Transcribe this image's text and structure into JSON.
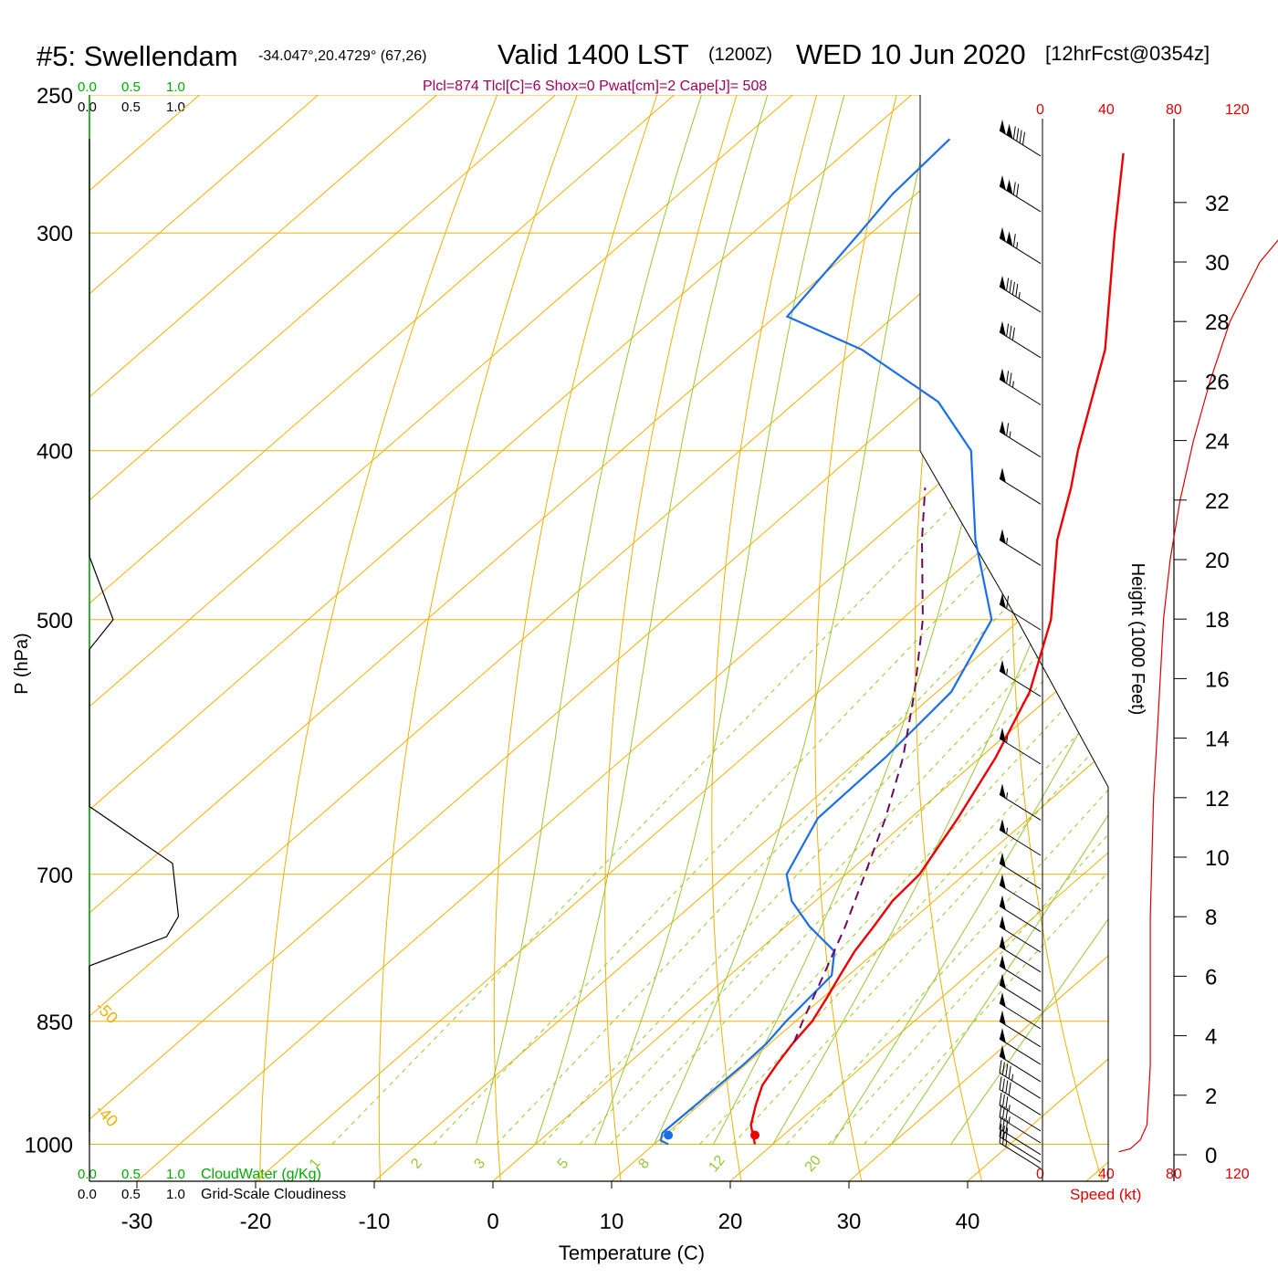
{
  "header": {
    "station": "#5: Swellendam",
    "coords": "-34.047°,20.4729° (67,26)",
    "valid": "Valid 1400 LST",
    "zulu": "(1200Z)",
    "date": "WED 10 Jun 2020",
    "forecast": "[12hrFcst@0354z]",
    "indices": "Plcl=874 Tlcl[C]=6 Shox=0 Pwat[cm]=2 Cape[J]= 508"
  },
  "colors": {
    "temperature": "#ee0000",
    "dewpoint": "#1a6fe8",
    "parcel": "#6a0a5a",
    "isotherm": "#f0b000",
    "mixing_ratio": "#96c832",
    "speed": "#dd0000",
    "cloud": "#00aa00",
    "indices": "#a0005a"
  },
  "cloud_scale": {
    "cloudwater_ticks": [
      "0.0",
      "0.5",
      "1.0"
    ],
    "cloudiness_ticks": [
      "0.0",
      "0.5",
      "1.0"
    ],
    "cloudwater_label": "CloudWater (g/Kg)",
    "cloudiness_label": "Grid-Scale Cloudiness"
  },
  "speed_axis": {
    "ticks": [
      "0",
      "40",
      "80",
      "120"
    ],
    "label": "Speed (kt)"
  },
  "chart_data": {
    "type": "line",
    "subtype": "skew-T log-P sounding",
    "xlabel": "Temperature (C)",
    "ylabel": "P (hPa)",
    "y2label": "Height (1000 Feet)",
    "x_ticks": [
      -30,
      -20,
      -10,
      0,
      10,
      20,
      30,
      40
    ],
    "y_ticks": [
      250,
      300,
      400,
      500,
      700,
      850,
      1000
    ],
    "height_ticks": [
      0,
      2,
      4,
      6,
      8,
      10,
      12,
      14,
      16,
      18,
      20,
      22,
      24,
      26,
      28,
      30,
      32
    ],
    "xlim": [
      -34,
      36
    ],
    "ylim": [
      1050,
      250
    ],
    "y_scale": "log",
    "isotherm_labels": [
      "-50",
      "-40",
      "-30",
      "-20",
      "-10",
      "0",
      "10",
      "20",
      "30"
    ],
    "mixing_ratio_labels": [
      "1",
      "2",
      "3",
      "5",
      "8",
      "12",
      "20"
    ],
    "series": [
      {
        "key": "temperature",
        "points": [
          [
            1000,
            18.5
          ],
          [
            975,
            16.3
          ],
          [
            950,
            14.8
          ],
          [
            925,
            13.4
          ],
          [
            900,
            12.6
          ],
          [
            875,
            11.9
          ],
          [
            850,
            11.4
          ],
          [
            825,
            10.4
          ],
          [
            800,
            9.3
          ],
          [
            775,
            8.2
          ],
          [
            750,
            7.4
          ],
          [
            725,
            6.5
          ],
          [
            700,
            6.2
          ],
          [
            650,
            4.0
          ],
          [
            600,
            1.3
          ],
          [
            550,
            -2.2
          ],
          [
            500,
            -7.4
          ],
          [
            450,
            -14.6
          ],
          [
            420,
            -18.5
          ],
          [
            400,
            -21.5
          ],
          [
            350,
            -29.0
          ],
          [
            300,
            -39.5
          ],
          [
            270,
            -46.5
          ]
        ]
      },
      {
        "key": "dewpoint",
        "points": [
          [
            1000,
            11.2
          ],
          [
            995,
            10.2
          ],
          [
            985,
            9.6
          ],
          [
            950,
            9.7
          ],
          [
            900,
            9.8
          ],
          [
            875,
            9.7
          ],
          [
            850,
            9.2
          ],
          [
            825,
            8.9
          ],
          [
            800,
            8.6
          ],
          [
            775,
            6.5
          ],
          [
            750,
            2.0
          ],
          [
            725,
            -2.0
          ],
          [
            700,
            -5.0
          ],
          [
            650,
            -7.8
          ],
          [
            600,
            -8.0
          ],
          [
            550,
            -8.8
          ],
          [
            500,
            -12.4
          ],
          [
            450,
            -21.5
          ],
          [
            400,
            -30.5
          ],
          [
            375,
            -38.0
          ],
          [
            350,
            -49.5
          ],
          [
            335,
            -59.0
          ],
          [
            300,
            -61.0
          ],
          [
            285,
            -62.0
          ],
          [
            265,
            -62.5
          ]
        ]
      },
      {
        "key": "parcel",
        "points": [
          [
            874,
            11.9
          ],
          [
            850,
            10.6
          ],
          [
            800,
            7.9
          ],
          [
            750,
            5.0
          ],
          [
            700,
            1.6
          ],
          [
            650,
            -2.1
          ],
          [
            600,
            -6.5
          ],
          [
            550,
            -11.9
          ],
          [
            500,
            -18.2
          ],
          [
            450,
            -26.0
          ],
          [
            420,
            -30.8
          ]
        ]
      }
    ],
    "surface_points": {
      "temperature": [
        1000,
        18.5
      ],
      "dewpoint": [
        1000,
        11.2
      ]
    },
    "cloudiness_profile": [
      [
        265,
        0.0
      ],
      [
        300,
        0.0
      ],
      [
        420,
        0.0
      ],
      [
        460,
        0.0
      ],
      [
        500,
        0.2
      ],
      [
        520,
        0.0
      ],
      [
        640,
        0.0
      ],
      [
        690,
        0.7
      ],
      [
        740,
        0.75
      ],
      [
        760,
        0.65
      ],
      [
        790,
        0.0
      ],
      [
        1000,
        0.0
      ]
    ],
    "speed_profile_kt": [
      [
        0.1,
        25
      ],
      [
        0.2,
        32
      ],
      [
        0.5,
        38
      ],
      [
        1.0,
        42
      ],
      [
        2.0,
        43
      ],
      [
        3.0,
        44
      ],
      [
        4.0,
        44
      ],
      [
        5.0,
        44
      ],
      [
        6.0,
        44
      ],
      [
        8.0,
        44
      ],
      [
        10.0,
        45
      ],
      [
        12.0,
        46
      ],
      [
        14.0,
        48
      ],
      [
        16.0,
        50
      ],
      [
        18.0,
        52
      ],
      [
        20.0,
        56
      ],
      [
        22.0,
        62
      ],
      [
        24.0,
        70
      ],
      [
        26.0,
        80
      ],
      [
        28.0,
        92
      ],
      [
        30.0,
        110
      ],
      [
        31.0,
        125
      ]
    ],
    "wind_barbs": [
      {
        "p": 262,
        "kt": 140
      },
      {
        "p": 282,
        "kt": 120
      },
      {
        "p": 302,
        "kt": 115
      },
      {
        "p": 322,
        "kt": 95
      },
      {
        "p": 342,
        "kt": 80
      },
      {
        "p": 364,
        "kt": 75
      },
      {
        "p": 390,
        "kt": 65
      },
      {
        "p": 415,
        "kt": 50
      },
      {
        "p": 450,
        "kt": 55
      },
      {
        "p": 490,
        "kt": 60
      },
      {
        "p": 535,
        "kt": 55
      },
      {
        "p": 585,
        "kt": 55
      },
      {
        "p": 630,
        "kt": 55
      },
      {
        "p": 660,
        "kt": 55
      },
      {
        "p": 690,
        "kt": 50
      },
      {
        "p": 710,
        "kt": 50
      },
      {
        "p": 730,
        "kt": 50
      },
      {
        "p": 750,
        "kt": 50
      },
      {
        "p": 770,
        "kt": 50
      },
      {
        "p": 790,
        "kt": 50
      },
      {
        "p": 810,
        "kt": 50
      },
      {
        "p": 830,
        "kt": 50
      },
      {
        "p": 850,
        "kt": 50
      },
      {
        "p": 870,
        "kt": 50
      },
      {
        "p": 890,
        "kt": 50
      },
      {
        "p": 910,
        "kt": 45
      },
      {
        "p": 930,
        "kt": 40
      },
      {
        "p": 950,
        "kt": 35
      },
      {
        "p": 965,
        "kt": 35
      },
      {
        "p": 980,
        "kt": 30
      },
      {
        "p": 990,
        "kt": 30
      },
      {
        "p": 998,
        "kt": 25
      }
    ]
  }
}
